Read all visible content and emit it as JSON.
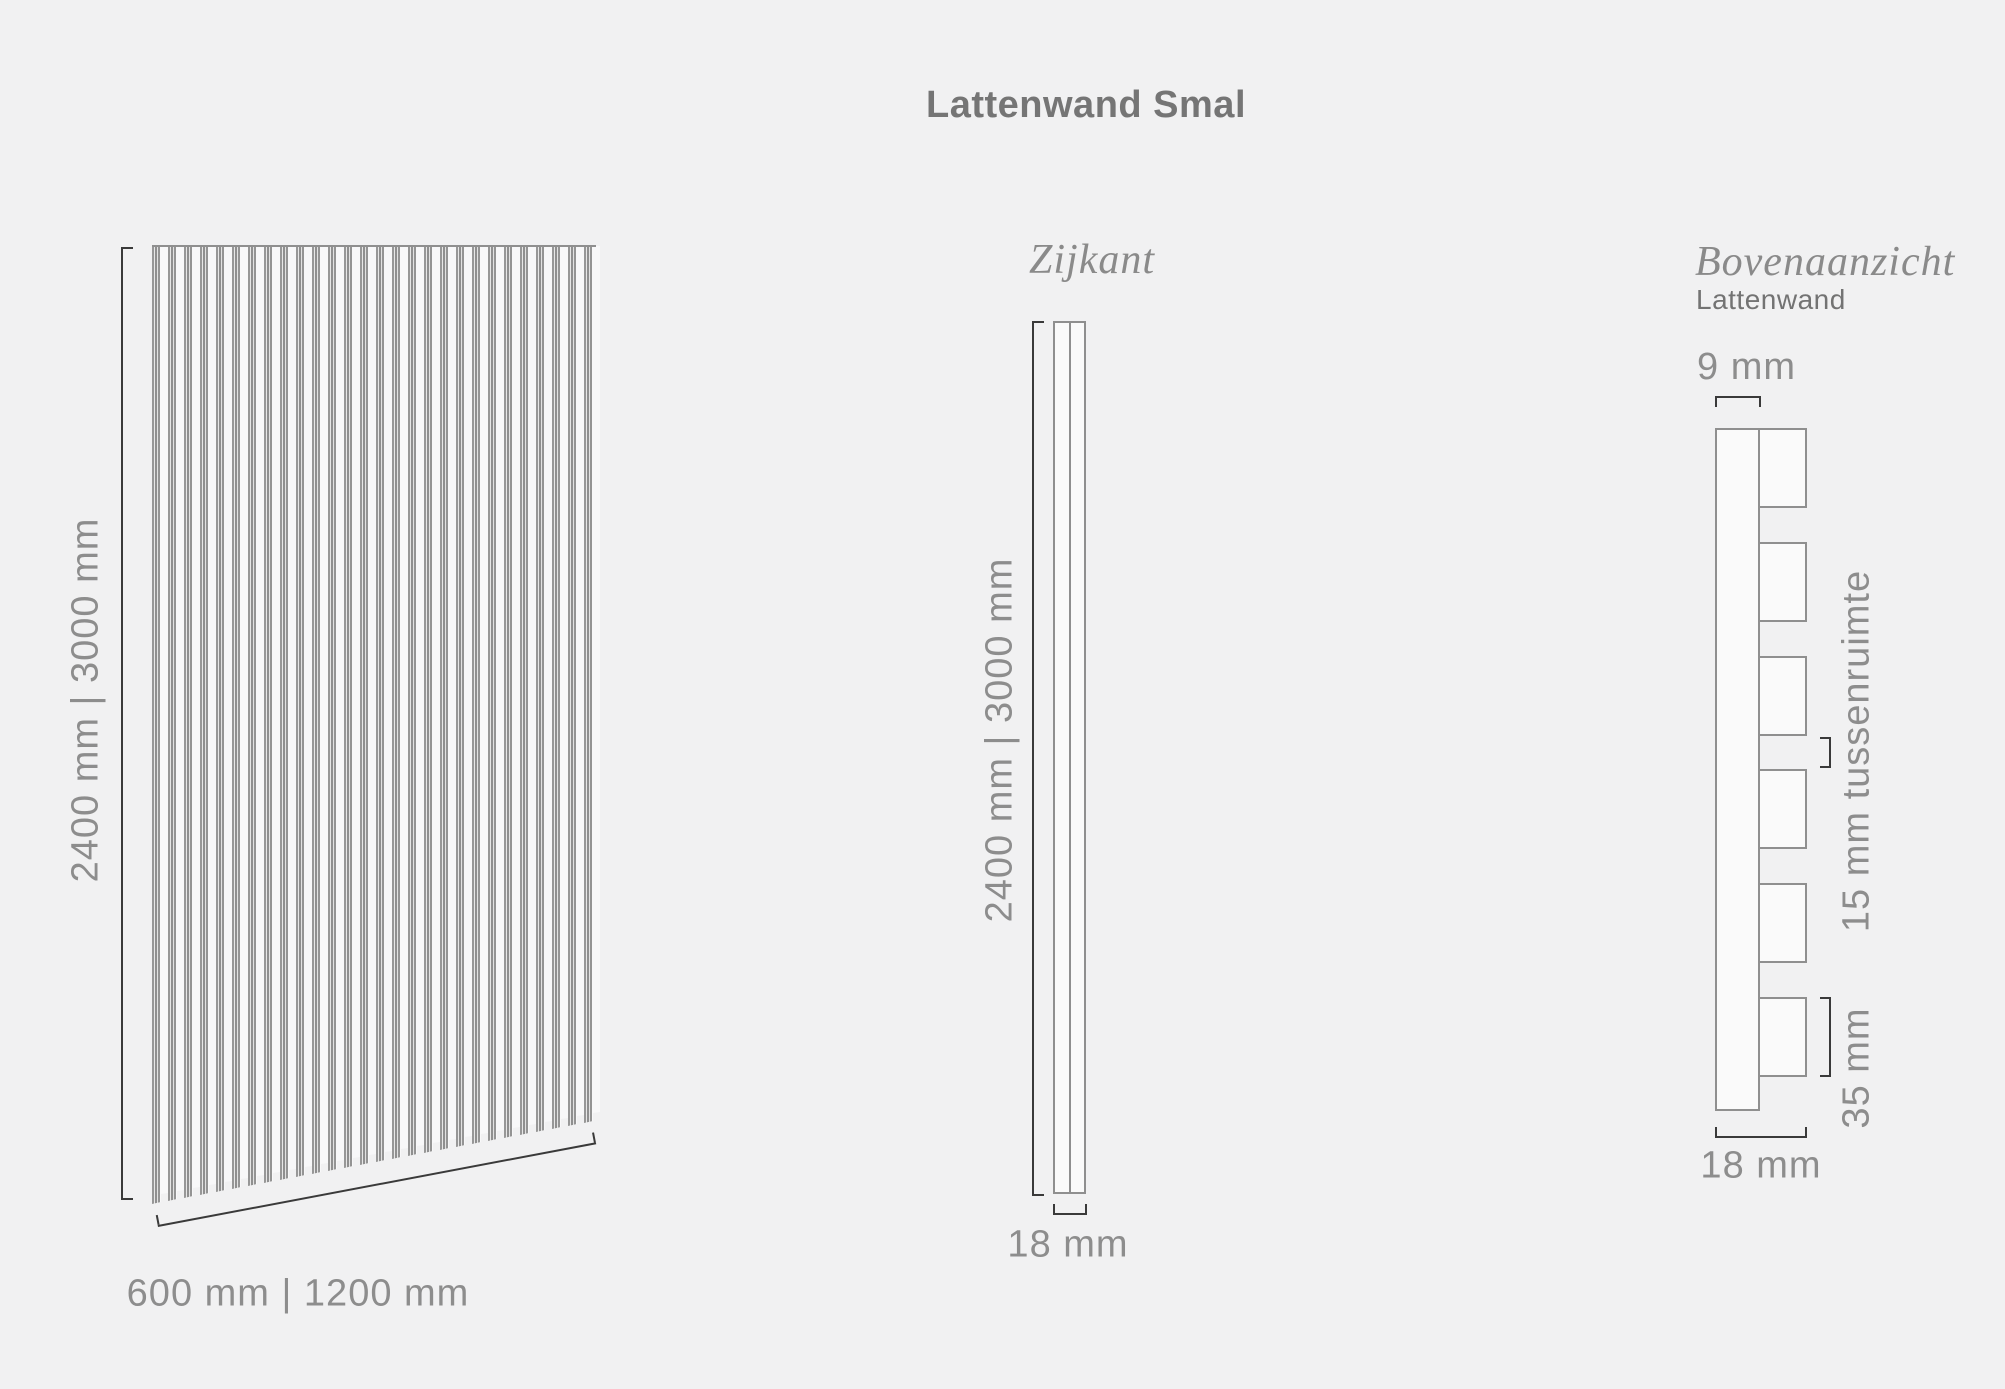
{
  "title": "Lattenwand Smal",
  "colors": {
    "background": "#f1f1f2",
    "panel_line": "#8f8f8f",
    "bracket": "#3a3a3a",
    "dim_text": "#8d8d8d",
    "title_text": "#757575",
    "script_text": "#8a8a8a",
    "shape_fill": "#fafafa"
  },
  "front_view": {
    "height_label": "2400 mm | 3000 mm",
    "width_label": "600 mm | 1200 mm",
    "slat_count": 28
  },
  "side_view": {
    "label": "Zijkant",
    "height_label": "2400 mm | 3000 mm",
    "depth_label": "18 mm"
  },
  "top_view": {
    "label": "Bovenaanzicht",
    "sublabel": "Lattenwand",
    "board_thickness_label": "9 mm",
    "gap_label": "15 mm tussenruimte",
    "slat_width_label": "35 mm",
    "total_depth_label": "18 mm",
    "slat_count": 6
  }
}
